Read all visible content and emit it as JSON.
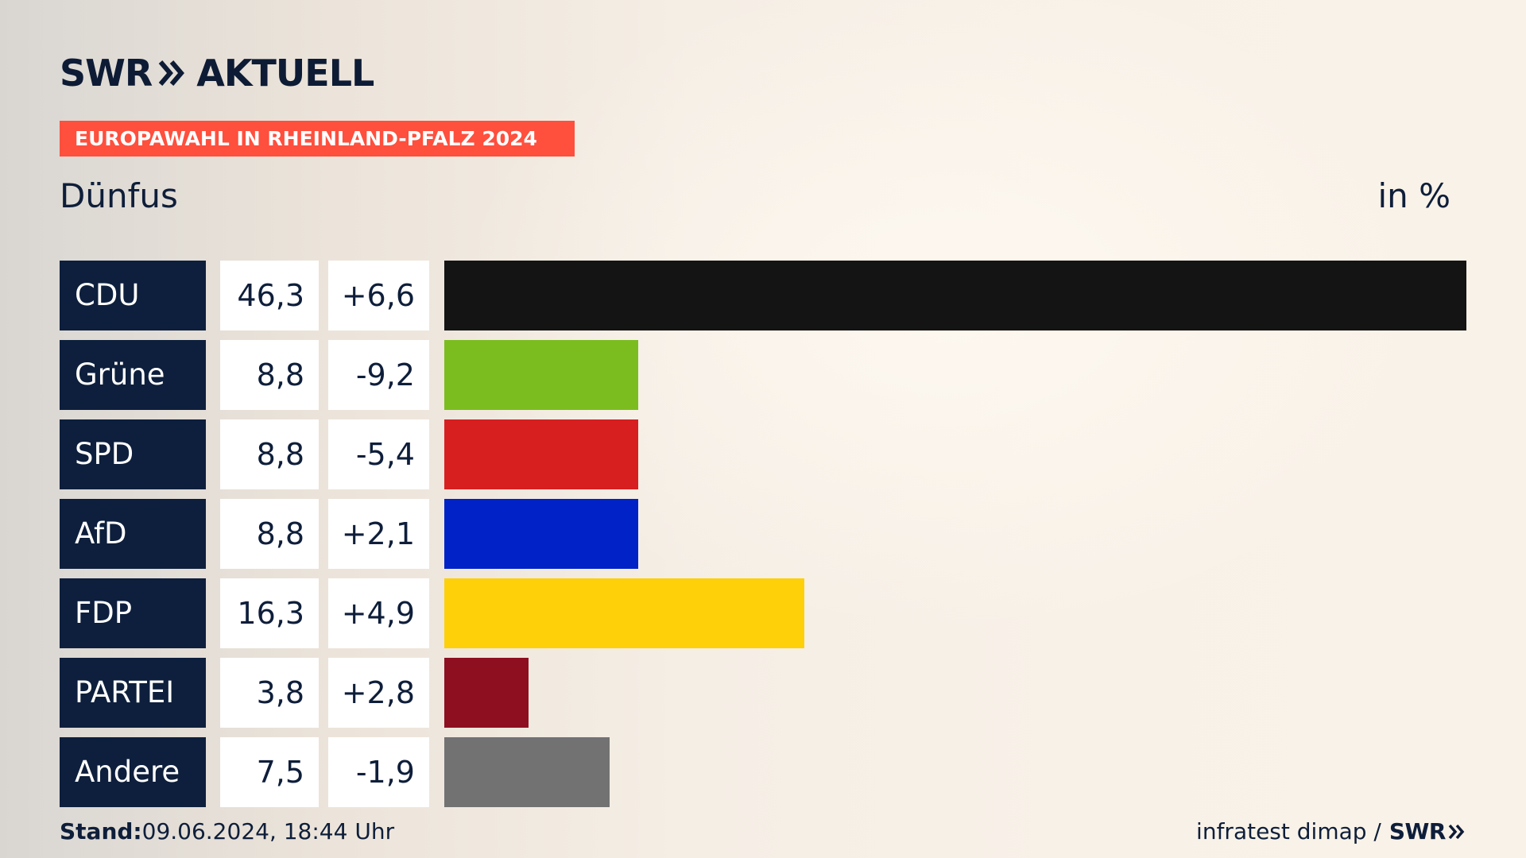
{
  "header": {
    "logo_text": "SWR",
    "logo_text2": "AKTUELL",
    "banner": "EUROPAWAHL IN RHEINLAND-PFALZ 2024",
    "subtitle": "Dünfus",
    "unit": "in %"
  },
  "chart_data": {
    "type": "bar",
    "title": "Dünfus",
    "unit": "in %",
    "categories": [
      "CDU",
      "Grüne",
      "SPD",
      "AfD",
      "FDP",
      "PARTEI",
      "Andere"
    ],
    "values": [
      46.3,
      8.8,
      8.8,
      8.8,
      16.3,
      3.8,
      7.5
    ],
    "value_labels": [
      "46,3",
      "8,8",
      "8,8",
      "8,8",
      "16,3",
      "3,8",
      "7,5"
    ],
    "changes": [
      6.6,
      -9.2,
      -5.4,
      2.1,
      4.9,
      2.8,
      -1.9
    ],
    "change_labels": [
      "+6,6",
      "-9,2",
      "-5,4",
      "+2,1",
      "+4,9",
      "+2,8",
      "-1,9"
    ],
    "colors": [
      "#141414",
      "#7bbd1f",
      "#d71f20",
      "#0022c6",
      "#fdd00a",
      "#8d0f20",
      "#727273"
    ],
    "xlim": [
      0,
      46.3
    ]
  },
  "footer": {
    "stand_label": "Stand:",
    "stand_value": "09.06.2024, 18:44 Uhr",
    "source": "infratest dimap /",
    "source_brand": "SWR"
  }
}
